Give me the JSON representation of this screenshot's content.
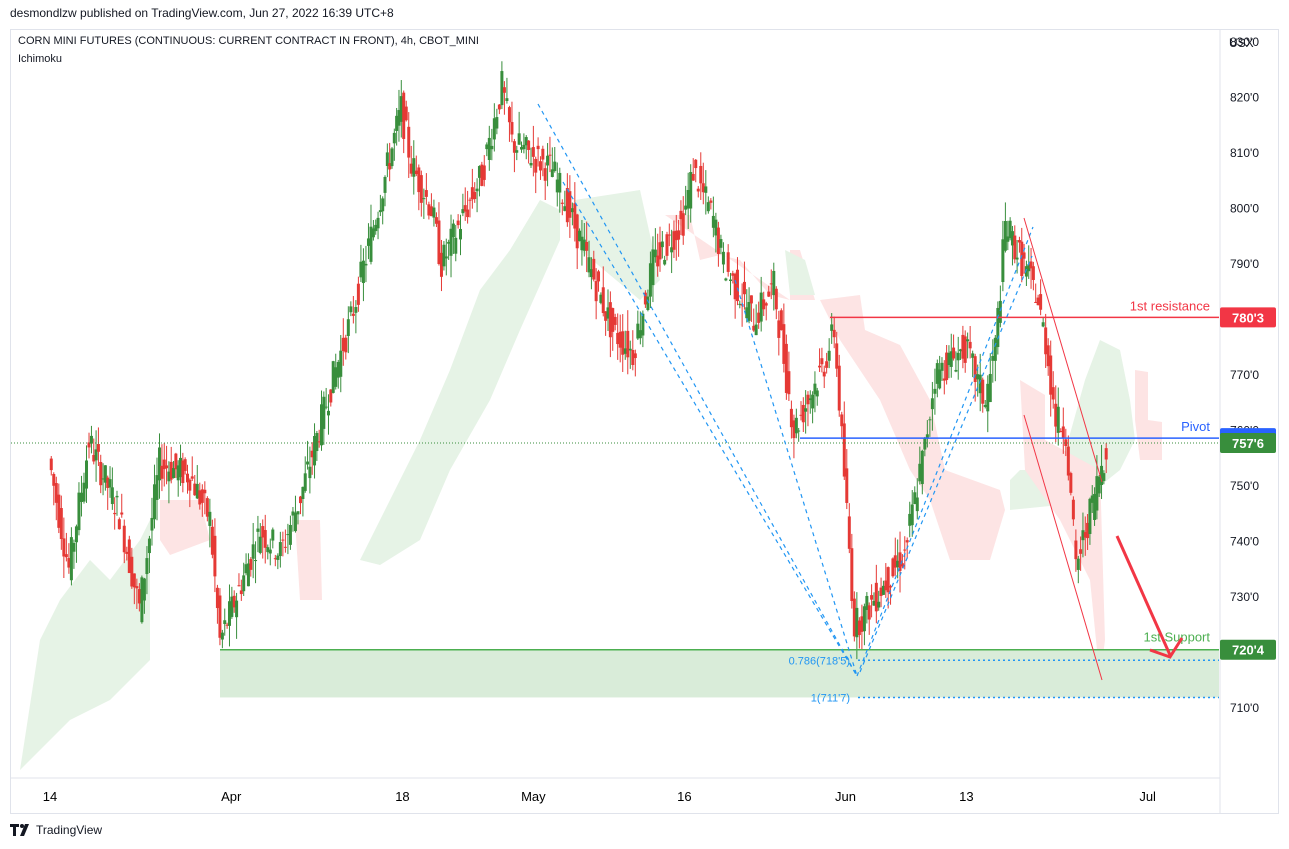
{
  "header": {
    "published_by": "desmondlzw published on TradingView.com, Jun 27, 2022 16:39 UTC+8"
  },
  "footer": {
    "brand": "TradingView",
    "logo_icon": "tradingview-logo-icon"
  },
  "colors": {
    "up": "#388e3c",
    "down": "#e53935",
    "cloud_up": "#e6f3e6",
    "cloud_down": "#fde4e4",
    "resistance": "#f23645",
    "pivot": "#2962ff",
    "support": "#4caf50",
    "fib": "#2196f3"
  },
  "chart_data": {
    "type": "candlestick",
    "title": "CORN MINI FUTURES (CONTINUOUS: CURRENT CONTRACT IN FRONT), 4h, CBOT_MINI",
    "indicator": "Ichimoku",
    "currency": "USX",
    "ylim": [
      703,
      834
    ],
    "y_ticks": [
      "830'0",
      "820'0",
      "810'0",
      "800'0",
      "790'0",
      "780'0",
      "770'0",
      "760'0",
      "750'0",
      "740'0",
      "730'0",
      "720'0",
      "710'0"
    ],
    "x_ticks": [
      "14",
      "Apr",
      "18",
      "May",
      "16",
      "Jun",
      "13",
      "Jul"
    ],
    "price_path": [
      [
        "Mar 14",
        755
      ],
      [
        "Mar 16",
        735
      ],
      [
        "Mar 18",
        758
      ],
      [
        "Mar 21",
        745
      ],
      [
        "Mar 23",
        728
      ],
      [
        "Mar 25",
        754
      ],
      [
        "Mar 28",
        752
      ],
      [
        "Mar 30",
        744
      ],
      [
        "Mar 31",
        722
      ],
      [
        "Apr 4",
        742
      ],
      [
        "Apr 6",
        738
      ],
      [
        "Apr 8",
        748
      ],
      [
        "Apr 11",
        768
      ],
      [
        "Apr 13",
        780
      ],
      [
        "Apr 15",
        795
      ],
      [
        "Apr 18",
        818
      ],
      [
        "Apr 19",
        808
      ],
      [
        "Apr 21",
        800
      ],
      [
        "Apr 22",
        790
      ],
      [
        "Apr 26",
        806
      ],
      [
        "Apr 28",
        822
      ],
      [
        "Apr 29",
        812
      ],
      [
        "May 3",
        807
      ],
      [
        "May 5",
        798
      ],
      [
        "May 9",
        778
      ],
      [
        "May 11",
        774
      ],
      [
        "May 13",
        790
      ],
      [
        "May 16",
        798
      ],
      [
        "May 17",
        807
      ],
      [
        "May 19",
        798
      ],
      [
        "May 20",
        790
      ],
      [
        "May 23",
        780
      ],
      [
        "May 25",
        786
      ],
      [
        "May 27",
        760
      ],
      [
        "May 30",
        772
      ],
      [
        "May 31",
        778
      ],
      [
        "Jun 1",
        752
      ],
      [
        "Jun 2",
        725
      ],
      [
        "Jun 3",
        727
      ],
      [
        "Jun 7",
        738
      ],
      [
        "Jun 9",
        757
      ],
      [
        "Jun 10",
        770
      ],
      [
        "Jun 13",
        775
      ],
      [
        "Jun 14",
        770
      ],
      [
        "Jun 15",
        765
      ],
      [
        "Jun 16",
        775
      ],
      [
        "Jun 17",
        797
      ],
      [
        "Jun 20",
        785
      ],
      [
        "Jun 21",
        776
      ],
      [
        "Jun 22",
        762
      ],
      [
        "Jun 23",
        760
      ],
      [
        "Jun 24",
        735
      ],
      [
        "Jun 27",
        757
      ]
    ],
    "levels": [
      {
        "name": "1st resistance",
        "value": 780.375,
        "price_label": "780'3"
      },
      {
        "name": "Pivot",
        "value": 758.625,
        "price_label": "758'5"
      },
      {
        "name": "1st Support",
        "value": 720.5,
        "price_label": "720'4"
      }
    ],
    "last_price": {
      "value": 757.75,
      "label": "757'6"
    },
    "fib_labels": [
      {
        "text": "0.786(718'5)",
        "value": 718.6
      },
      {
        "text": "1(711'7)",
        "value": 711.9
      }
    ]
  }
}
